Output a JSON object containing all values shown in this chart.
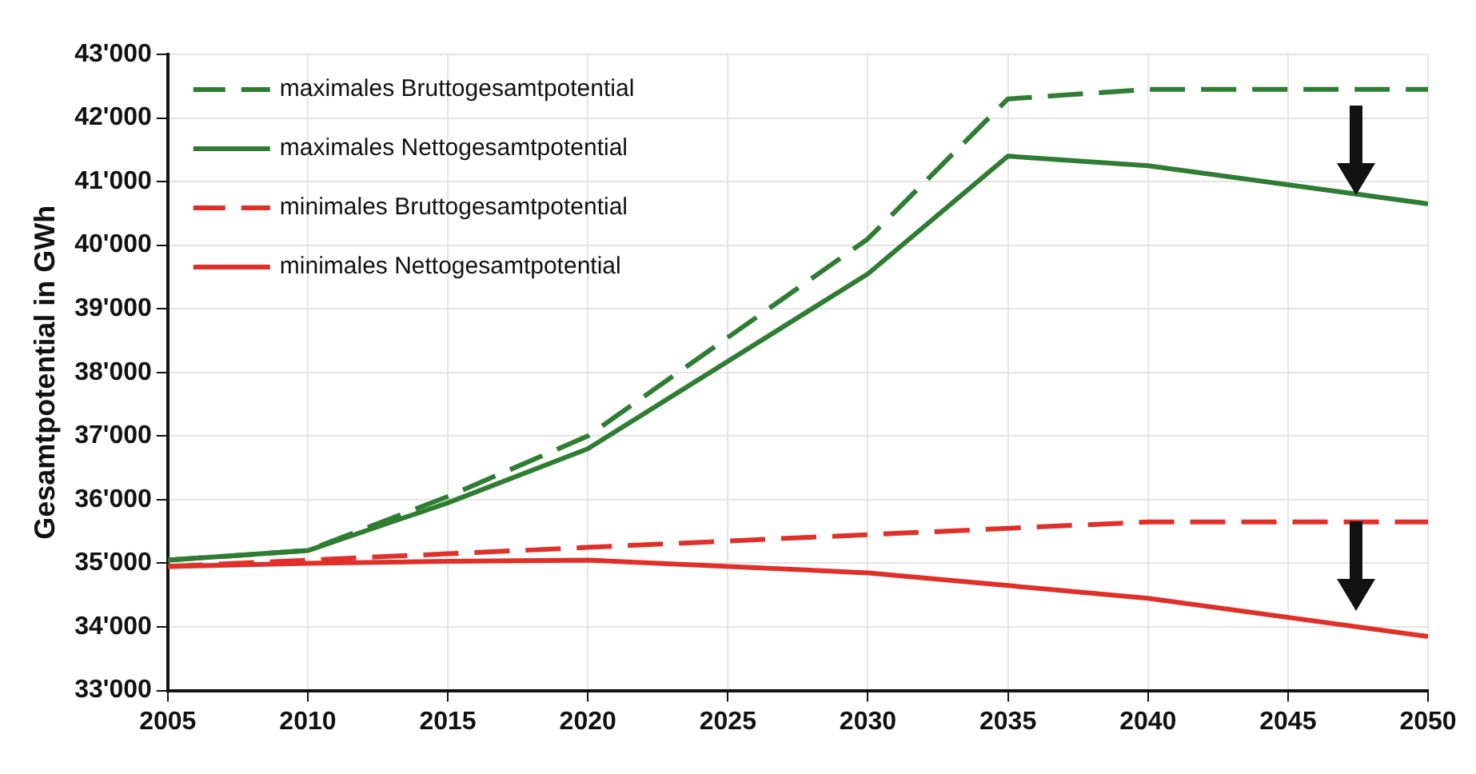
{
  "chart_data": {
    "type": "line",
    "ylabel": "Gesamtpotential in GWh",
    "x": [
      2005,
      2010,
      2015,
      2020,
      2030,
      2035,
      2040,
      2050
    ],
    "xlim": [
      2005,
      2050
    ],
    "xticks": [
      2005,
      2010,
      2015,
      2020,
      2025,
      2030,
      2035,
      2040,
      2045,
      2050
    ],
    "ylim": [
      33000,
      43000
    ],
    "yticks": [
      {
        "value": 33000,
        "label": "33'000"
      },
      {
        "value": 34000,
        "label": "34'000"
      },
      {
        "value": 35000,
        "label": "35'000"
      },
      {
        "value": 36000,
        "label": "36'000"
      },
      {
        "value": 37000,
        "label": "37'000"
      },
      {
        "value": 38000,
        "label": "38'000"
      },
      {
        "value": 39000,
        "label": "39'000"
      },
      {
        "value": 40000,
        "label": "40'000"
      },
      {
        "value": 41000,
        "label": "41'000"
      },
      {
        "value": 42000,
        "label": "42'000"
      },
      {
        "value": 43000,
        "label": "43'000"
      }
    ],
    "grid": true,
    "legend": "top left",
    "marker": "none",
    "series": [
      {
        "name": "maximales Bruttogesamtpotential",
        "color": "#2e7d32",
        "line_style": "dashed",
        "values": [
          35050,
          35200,
          36050,
          37000,
          40100,
          42300,
          42450,
          42450
        ]
      },
      {
        "name": "maximales Nettogesamtpotential",
        "color": "#2e7d32",
        "line_style": "solid",
        "values": [
          35050,
          35200,
          35950,
          36800,
          39550,
          41400,
          41250,
          40650
        ]
      },
      {
        "name": "minimales Bruttogesamtpotential",
        "color": "#e0302a",
        "line_style": "dashed",
        "values": [
          34950,
          35050,
          35150,
          35250,
          35450,
          35550,
          35650,
          35650
        ]
      },
      {
        "name": "minimales Nettogesamtpotential",
        "color": "#e0302a",
        "line_style": "solid",
        "values": [
          34950,
          35000,
          35030,
          35050,
          34850,
          34650,
          34450,
          33850
        ]
      }
    ]
  }
}
